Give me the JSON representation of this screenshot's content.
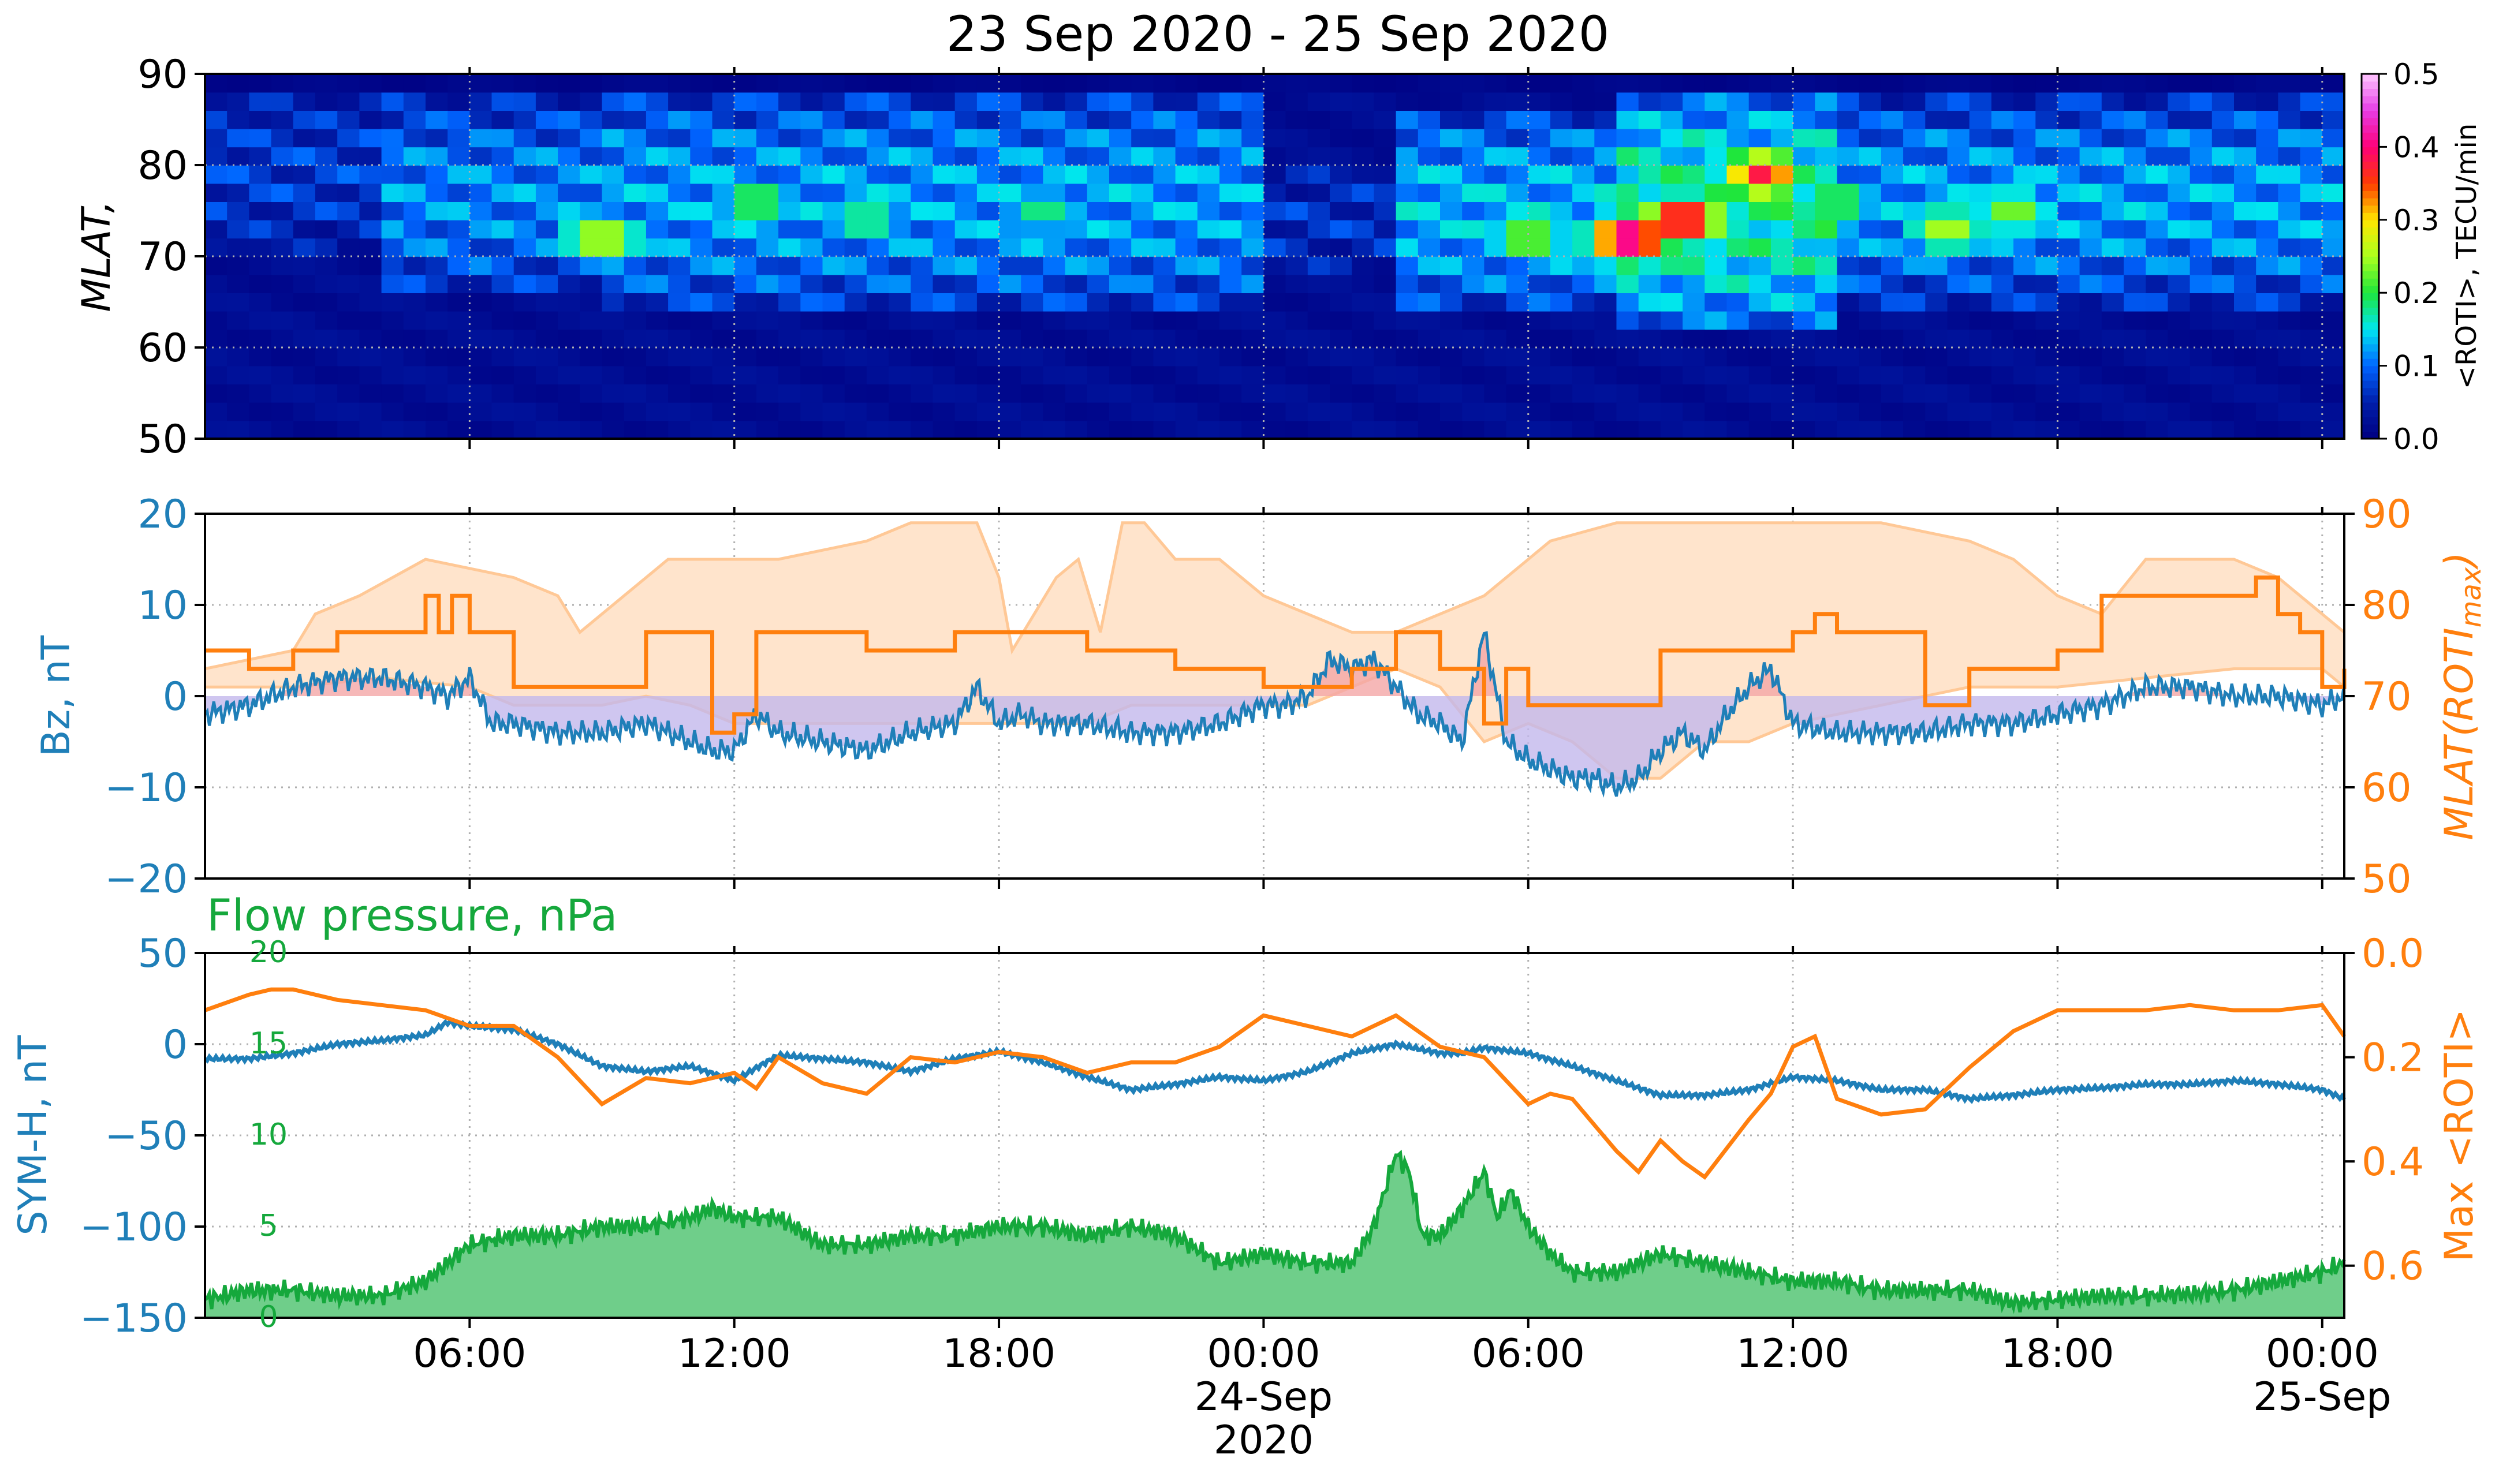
{
  "title": "23 Sep 2020 - 25 Sep 2020",
  "colors": {
    "blue": "#1f7fb8",
    "orange": "#ff7f0e",
    "green": "#15a83c",
    "green_fill": "#6fce8a",
    "shade_orange": "#ffe4cc",
    "shade_orange_edge": "#ffc896",
    "pos_fill": "#f4a6a6",
    "neg_fill": "#c3b8ec",
    "grid": "#b0b0b0",
    "black": "#000000"
  },
  "time_axis": {
    "range_hours": [
      0,
      48.5
    ],
    "ticks": [
      {
        "h": 6,
        "label": "06:00",
        "sub": []
      },
      {
        "h": 12,
        "label": "12:00",
        "sub": []
      },
      {
        "h": 18,
        "label": "18:00",
        "sub": []
      },
      {
        "h": 24,
        "label": "00:00",
        "sub": [
          "24-Sep",
          "2020"
        ]
      },
      {
        "h": 30,
        "label": "06:00",
        "sub": []
      },
      {
        "h": 36,
        "label": "12:00",
        "sub": []
      },
      {
        "h": 42,
        "label": "18:00",
        "sub": []
      },
      {
        "h": 48,
        "label": "00:00",
        "sub": [
          "25-Sep"
        ]
      }
    ]
  },
  "chart_data": [
    {
      "type": "heatmap",
      "ylabel": "MLAT,",
      "ylim": [
        50,
        90
      ],
      "yticks": [
        50,
        60,
        70,
        80,
        90
      ],
      "colorbar": {
        "label": "<ROTI>, TECU/min",
        "range": [
          0,
          0.5
        ],
        "ticks": [
          "0.0",
          "0.1",
          "0.2",
          "0.3",
          "0.4",
          "0.5"
        ]
      },
      "cell_hours": 0.5,
      "cell_deg": 2,
      "activity_bands": [
        {
          "h": [
            0,
            4
          ],
          "lat": [
            71,
            88
          ],
          "v": 0.07
        },
        {
          "h": [
            4,
            10
          ],
          "lat": [
            66,
            87
          ],
          "v": 0.11
        },
        {
          "h": [
            9,
            24
          ],
          "lat": [
            64,
            88
          ],
          "v": 0.12
        },
        {
          "h": [
            24,
            27
          ],
          "lat": [
            68,
            80
          ],
          "v": 0.06
        },
        {
          "h": [
            27,
            32
          ],
          "lat": [
            64,
            86
          ],
          "v": 0.13
        },
        {
          "h": [
            32,
            37
          ],
          "lat": [
            62,
            88
          ],
          "v": 0.17
        },
        {
          "h": [
            37,
            48.5
          ],
          "lat": [
            65,
            87
          ],
          "v": 0.12
        }
      ],
      "hotspots": [
        {
          "h": 9,
          "lat": 72,
          "v": 0.28
        },
        {
          "h": 12.5,
          "lat": 76,
          "v": 0.22
        },
        {
          "h": 15,
          "lat": 74,
          "v": 0.2
        },
        {
          "h": 19,
          "lat": 75,
          "v": 0.19
        },
        {
          "h": 30,
          "lat": 72,
          "v": 0.25
        },
        {
          "h": 32.3,
          "lat": 72,
          "v": 0.45
        },
        {
          "h": 33.5,
          "lat": 74,
          "v": 0.42
        },
        {
          "h": 35.3,
          "lat": 79,
          "v": 0.38
        },
        {
          "h": 37,
          "lat": 76,
          "v": 0.22
        },
        {
          "h": 39.5,
          "lat": 73,
          "v": 0.26
        },
        {
          "h": 41,
          "lat": 75,
          "v": 0.24
        }
      ]
    },
    {
      "type": "line",
      "ylabel_left": "Bz, nT",
      "ylabel_right": "MLAT(ROTI",
      "ylabel_right_sub": "max",
      "ylabel_right_close": ")",
      "ylim_left": [
        -20,
        20
      ],
      "ylim_right": [
        50,
        90
      ],
      "yticks_left": [
        "−20",
        "−10",
        "0",
        "10",
        "20"
      ],
      "yticks_right": [
        "50",
        "60",
        "70",
        "80",
        "90"
      ],
      "series": [
        {
          "name": "Bz",
          "x": [
            0,
            1,
            2,
            3,
            4,
            5,
            5.5,
            6,
            6.5,
            7,
            8,
            9,
            10,
            11,
            11.5,
            12,
            12.5,
            13,
            14,
            15,
            16,
            17,
            17.5,
            18,
            18.5,
            19,
            20,
            21,
            22,
            23,
            24,
            24.5,
            25,
            25.5,
            26,
            26.5,
            27,
            27.5,
            28,
            28.5,
            29,
            29.5,
            30,
            30.5,
            31,
            31.5,
            32,
            32.5,
            33,
            33.5,
            34,
            34.5,
            35,
            35.5,
            36,
            37,
            38,
            39,
            40,
            41,
            42,
            43,
            44,
            45,
            46,
            47,
            48,
            48.5
          ],
          "values": [
            -2,
            -1,
            1,
            2,
            2,
            1,
            0,
            2,
            -3,
            -3,
            -4,
            -4,
            -3,
            -5,
            -6,
            -6,
            -2,
            -4,
            -5,
            -6,
            -4,
            -3,
            1,
            -3,
            -2,
            -3,
            -3,
            -4,
            -4,
            -3,
            -1,
            -1,
            0,
            4,
            3,
            4,
            1,
            -2,
            -3,
            -5,
            7,
            -5,
            -7,
            -8,
            -9,
            -9,
            -10,
            -9,
            -6,
            -4,
            -6,
            -2,
            1,
            3,
            -3,
            -4,
            -4,
            -4,
            -3,
            -3,
            -2,
            -1,
            1,
            1,
            0,
            0,
            -1,
            0
          ]
        },
        {
          "name": "MLAT(ROTImax)",
          "x": [
            0,
            1,
            2,
            3,
            4,
            5,
            5.3,
            5.6,
            6,
            6.4,
            7,
            9,
            10,
            11,
            11.5,
            12,
            12.5,
            13,
            14,
            15,
            17,
            19,
            20,
            21,
            22,
            23,
            24,
            25,
            26,
            26.5,
            27,
            28,
            29,
            29.5,
            30,
            31,
            32,
            33,
            34,
            35,
            36,
            36.5,
            37,
            38,
            39,
            40,
            41,
            42,
            43,
            44,
            45,
            46,
            46.5,
            47,
            47.5,
            48,
            48.5
          ],
          "values": [
            75,
            73,
            75,
            77,
            77,
            81,
            77,
            81,
            77,
            77,
            71,
            71,
            77,
            77,
            66,
            68,
            77,
            77,
            77,
            75,
            77,
            77,
            75,
            75,
            73,
            73,
            71,
            71,
            73,
            73,
            77,
            73,
            67,
            73,
            69,
            69,
            69,
            75,
            75,
            75,
            77,
            79,
            77,
            77,
            69,
            73,
            73,
            75,
            81,
            81,
            81,
            81,
            83,
            79,
            77,
            71,
            73
          ]
        }
      ],
      "band_upper": {
        "x": [
          0,
          2,
          2.5,
          3.5,
          5,
          7,
          8,
          8.5,
          9.5,
          10.5,
          13,
          15,
          16,
          17,
          17.5,
          18,
          18.3,
          18.8,
          19.3,
          19.8,
          20.3,
          20.8,
          21.3,
          22,
          23,
          24,
          25,
          26,
          27,
          28,
          29,
          30,
          30.5,
          32,
          34,
          36,
          38,
          40,
          41,
          42,
          43,
          44,
          45,
          46,
          47,
          48,
          48.5
        ],
        "values": [
          73,
          75,
          79,
          81,
          85,
          83,
          81,
          77,
          81,
          85,
          85,
          87,
          89,
          89,
          89,
          83,
          75,
          79,
          83,
          85,
          77,
          89,
          89,
          85,
          85,
          81,
          79,
          77,
          77,
          79,
          81,
          85,
          87,
          89,
          89,
          89,
          89,
          87,
          85,
          81,
          79,
          85,
          85,
          85,
          83,
          79,
          77
        ]
      },
      "band_lower": {
        "x": [
          0,
          2,
          4,
          6,
          7,
          9,
          10,
          11,
          12,
          13,
          14,
          17,
          19,
          20,
          21,
          22,
          24,
          25,
          26,
          27,
          28,
          29,
          30,
          31,
          32,
          33,
          34,
          35,
          36,
          38,
          40,
          42,
          44,
          46,
          48,
          48.5
        ],
        "values": [
          71,
          71,
          72,
          71,
          69,
          69,
          70,
          69,
          67,
          67,
          67,
          67,
          67,
          67,
          69,
          69,
          69,
          69,
          71,
          73,
          71,
          65,
          67,
          65,
          61,
          61,
          65,
          65,
          67,
          69,
          71,
          71,
          72,
          73,
          73,
          71
        ]
      }
    },
    {
      "type": "line",
      "title": "Flow pressure, nPa",
      "ylabel_left": "SYM-H, nT",
      "ylabel_right": "Max <ROTI>",
      "ylim_left": [
        -150,
        50
      ],
      "ylim_inner": [
        0,
        20
      ],
      "ylim_right": [
        0.7,
        0.0
      ],
      "yticks_left": [
        "−150",
        "−100",
        "−50",
        "0",
        "50"
      ],
      "yticks_inner": [
        "0",
        "5",
        "10",
        "15",
        "20"
      ],
      "yticks_right": [
        "0.0",
        "0.2",
        "0.4",
        "0.6"
      ],
      "series": [
        {
          "name": "SYM-H",
          "x": [
            0,
            1,
            2,
            3,
            4,
            5,
            5.5,
            6,
            7,
            8,
            9,
            10,
            11,
            12,
            13,
            14,
            15,
            16,
            17,
            18,
            19,
            20,
            21,
            22,
            23,
            24,
            25,
            26,
            27,
            28,
            28.5,
            29,
            30,
            31,
            32,
            33,
            34,
            35,
            36,
            37,
            38,
            39,
            40,
            41,
            42,
            43,
            44,
            45,
            46,
            47,
            48,
            48.5
          ],
          "values": [
            -8,
            -8,
            -5,
            0,
            2,
            5,
            12,
            10,
            8,
            0,
            -12,
            -15,
            -12,
            -20,
            -6,
            -8,
            -10,
            -15,
            -8,
            -4,
            -10,
            -18,
            -25,
            -22,
            -18,
            -20,
            -15,
            -5,
            0,
            -5,
            -5,
            -2,
            -5,
            -12,
            -20,
            -28,
            -28,
            -25,
            -18,
            -20,
            -25,
            -25,
            -30,
            -28,
            -25,
            -24,
            -22,
            -22,
            -20,
            -22,
            -25,
            -30
          ]
        },
        {
          "name": "Flow pressure",
          "x": [
            0,
            1,
            2,
            3,
            4,
            5,
            6,
            7,
            8,
            9,
            10,
            11,
            11.5,
            12,
            13,
            14,
            15,
            16,
            17,
            18,
            19,
            20,
            21,
            22,
            23,
            24,
            25,
            26,
            26.5,
            27,
            27.3,
            27.6,
            28,
            28.5,
            29,
            29.3,
            29.6,
            30,
            30.5,
            31,
            32,
            33,
            34,
            35,
            36,
            37,
            38,
            39,
            40,
            41,
            42,
            43,
            44,
            45,
            46,
            47,
            48,
            48.5
          ],
          "values": [
            1,
            1.5,
            1.5,
            1.2,
            1.2,
            2,
            4,
            4.5,
            4.5,
            5,
            5,
            5.5,
            6,
            5.5,
            5.5,
            4,
            4,
            4.5,
            4.5,
            5,
            5,
            4.5,
            5,
            4.5,
            3,
            3.5,
            3,
            3,
            5,
            9,
            8,
            4.5,
            4.5,
            6,
            8,
            5.5,
            7,
            5,
            3.5,
            2.5,
            2.5,
            3.5,
            3,
            2.5,
            2,
            2,
            1.5,
            1.5,
            1.5,
            0.8,
            1,
            1.2,
            1.2,
            1.3,
            1.5,
            2,
            2.5,
            3
          ]
        },
        {
          "name": "Max <ROTI>",
          "x": [
            0,
            1,
            1.5,
            2,
            3,
            4,
            5,
            6,
            7,
            8,
            9,
            10,
            11,
            12,
            12.5,
            13,
            14,
            15,
            16,
            17,
            18,
            19,
            20,
            21,
            22,
            23,
            24,
            25,
            26,
            27,
            28,
            29,
            30,
            30.5,
            31,
            32,
            32.5,
            33,
            33.5,
            34,
            35,
            35.5,
            36,
            36.5,
            37,
            38,
            39,
            40,
            41,
            42,
            43,
            44,
            45,
            46,
            47,
            48,
            48.5
          ],
          "values": [
            0.11,
            0.08,
            0.07,
            0.07,
            0.09,
            0.1,
            0.11,
            0.14,
            0.14,
            0.2,
            0.29,
            0.24,
            0.25,
            0.23,
            0.26,
            0.2,
            0.25,
            0.27,
            0.2,
            0.21,
            0.19,
            0.2,
            0.23,
            0.21,
            0.21,
            0.18,
            0.12,
            0.14,
            0.16,
            0.12,
            0.18,
            0.2,
            0.29,
            0.27,
            0.28,
            0.38,
            0.42,
            0.36,
            0.4,
            0.43,
            0.32,
            0.27,
            0.18,
            0.16,
            0.28,
            0.31,
            0.3,
            0.22,
            0.15,
            0.11,
            0.11,
            0.11,
            0.1,
            0.11,
            0.11,
            0.1,
            0.16
          ]
        }
      ]
    }
  ]
}
